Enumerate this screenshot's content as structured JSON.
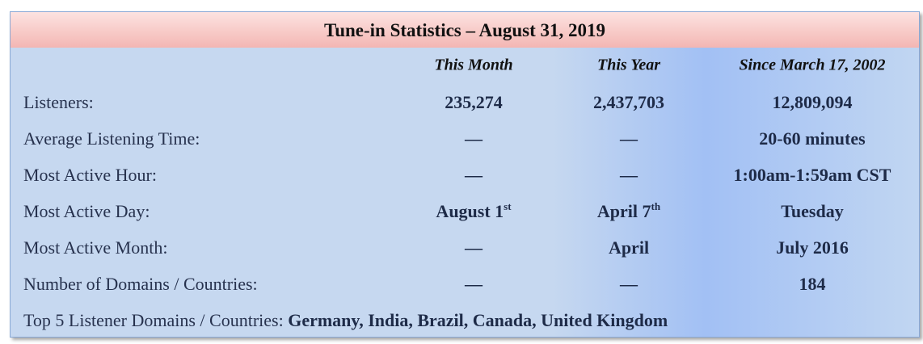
{
  "header": {
    "title": "Tune-in Statistics – August 31, 2019"
  },
  "table": {
    "columns": [
      "This Month",
      "This Year",
      "Since March 17, 2002"
    ],
    "rows": [
      {
        "label": "Listeners:",
        "values": [
          "235,274",
          "2,437,703",
          "12,809,094"
        ]
      },
      {
        "label": "Average Listening Time:",
        "values": [
          "—",
          "—",
          "20-60 minutes"
        ]
      },
      {
        "label": "Most Active Hour:",
        "values": [
          "—",
          "—",
          "1:00am-1:59am CST"
        ]
      },
      {
        "label": "Most Active Day:",
        "values": [
          {
            "text": "August 1",
            "sup": "st"
          },
          {
            "text": "April 7",
            "sup": "th"
          },
          "Tuesday"
        ]
      },
      {
        "label": "Most Active Month:",
        "values": [
          "—",
          "April",
          "July 2016"
        ]
      },
      {
        "label": "Number of Domains / Countries:",
        "values": [
          "—",
          "—",
          "184"
        ]
      }
    ]
  },
  "footer": {
    "label": "Top 5 Listener Domains / Countries:",
    "value": "Germany, India, Brazil, Canada, United Kingdom"
  }
}
